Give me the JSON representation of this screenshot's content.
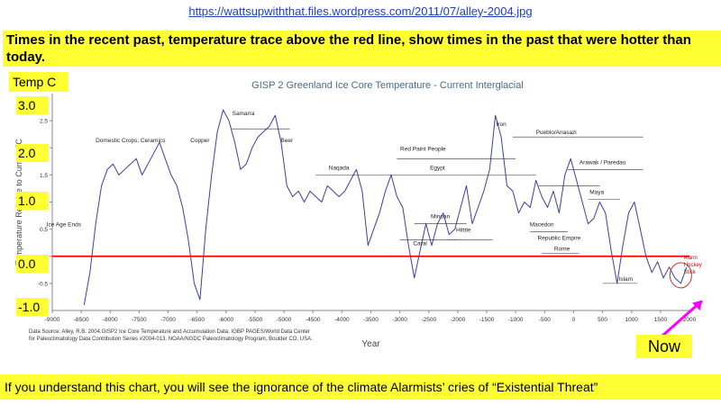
{
  "url": "https://wattsupwiththat.files.wordpress.com/2011/07/alley-2004.jpg",
  "headline": "Times in the recent past, temperature trace above the red line, show times in the past that were hotter than today.",
  "temp_label": "Temp C",
  "now_label": "Now",
  "bottom_text": "If you understand this chart, you will see the ignorance of the climate Alarmists’ cries of “Existential Threat”",
  "source_text": "Data Source: Alley, R.B.  2004.GISP2 Ice Core Temperature and Accumulation Data.  IGBP PAGES/World Data Center for Paleoclimatology Data Contribution Series #2004-013. NOAA/NGDC Paleoclimatology Program, Boulder CO, USA.",
  "colors": {
    "trace": "#3f3f9f",
    "zero_line": "#ff0000",
    "highlight": "#ffff33",
    "arrow": "#ff00ff"
  },
  "chart_data": {
    "type": "line",
    "title": "GISP 2 Greenland Ice Core Temperature - Current Interglacial",
    "xlabel": "Year",
    "ylabel": "Temperature Relative to Current °C",
    "xlim": [
      -9000,
      2000
    ],
    "ylim": [
      -1.0,
      3.0
    ],
    "x_ticks": [
      -9000,
      -8500,
      -8000,
      -7500,
      -7000,
      -6500,
      -6000,
      -5500,
      -5000,
      -4500,
      -4000,
      -3500,
      -3000,
      -2500,
      -2000,
      -1500,
      -1000,
      -500,
      0,
      500,
      1000,
      1500,
      2000
    ],
    "y_ticks": [
      -0.5,
      0,
      0.5,
      1,
      1.5,
      2,
      2.5
    ],
    "y_overlay_labels": [
      "3.0",
      "2.0",
      "1.0",
      "0.0",
      "-1.0"
    ],
    "grid": false,
    "reference_line": {
      "y": 0,
      "color": "red"
    },
    "series": [
      {
        "x": [
          -8450,
          -8350,
          -8250,
          -8150,
          -8050,
          -7950,
          -7850,
          -7750,
          -7650,
          -7550,
          -7450,
          -7350,
          -7250,
          -7150,
          -7050,
          -6950,
          -6850,
          -6750,
          -6650,
          -6550,
          -6450,
          -6350,
          -6250,
          -6150,
          -6050,
          -5950,
          -5850,
          -5750,
          -5650,
          -5550,
          -5450,
          -5350,
          -5250,
          -5150,
          -5050,
          -4950,
          -4850,
          -4750,
          -4650,
          -4550,
          -4450,
          -4350,
          -4250,
          -4150,
          -4050,
          -3950,
          -3850,
          -3750,
          -3650,
          -3550,
          -3450,
          -3350,
          -3250,
          -3150,
          -3050,
          -2950,
          -2850,
          -2750,
          -2650,
          -2550,
          -2450,
          -2350,
          -2250,
          -2150,
          -2050,
          -1950,
          -1850,
          -1750,
          -1650,
          -1550,
          -1450,
          -1350,
          -1250,
          -1150,
          -1050,
          -950,
          -850,
          -750,
          -650,
          -550,
          -450,
          -350,
          -250,
          -150,
          -50,
          50,
          150,
          250,
          350,
          450,
          550,
          650,
          750,
          850,
          950,
          1050,
          1150,
          1250,
          1350,
          1450,
          1550,
          1650,
          1750,
          1850,
          1950
        ],
        "y": [
          -0.9,
          -0.3,
          0.6,
          1.3,
          1.6,
          1.7,
          1.5,
          1.6,
          1.7,
          1.8,
          1.5,
          1.7,
          1.9,
          2.1,
          1.8,
          1.5,
          1.3,
          0.9,
          0.3,
          -0.5,
          -0.8,
          0.5,
          1.5,
          2.3,
          2.7,
          2.5,
          2.1,
          1.6,
          1.7,
          2.0,
          2.2,
          2.3,
          2.4,
          2.6,
          2.1,
          1.3,
          1.1,
          1.2,
          1.0,
          1.2,
          1.1,
          1.0,
          1.3,
          1.2,
          1.1,
          1.2,
          1.4,
          1.6,
          1.2,
          0.2,
          0.5,
          0.8,
          1.2,
          1.5,
          1.1,
          0.9,
          0.2,
          -0.4,
          0.1,
          0.6,
          0.2,
          0.6,
          0.8,
          0.4,
          0.5,
          0.9,
          1.3,
          0.6,
          0.9,
          1.2,
          1.6,
          2.6,
          2.2,
          1.3,
          1.2,
          0.8,
          1.0,
          0.9,
          1.4,
          1.1,
          0.9,
          1.2,
          0.8,
          1.5,
          1.8,
          1.4,
          1.0,
          0.6,
          0.7,
          1.0,
          0.8,
          0.1,
          -0.5,
          0.2,
          0.8,
          1.0,
          0.5,
          0.0,
          -0.3,
          -0.1,
          -0.4,
          -0.2,
          -0.4,
          -0.5,
          -0.2
        ]
      }
    ],
    "annotations": [
      {
        "text": "Ice Age Ends",
        "x": -8800,
        "y": 0.55
      },
      {
        "text": "Domestic Crops, Ceramics",
        "x": -7650,
        "y": 2.1
      },
      {
        "text": "Copper",
        "x": -6450,
        "y": 2.1
      },
      {
        "text": "Samarra",
        "x": -5700,
        "y": 2.6
      },
      {
        "text": "Beer",
        "x": -4950,
        "y": 2.1
      },
      {
        "text": "Naqada",
        "x": -4050,
        "y": 1.6
      },
      {
        "text": "Red Paint People",
        "x": -2600,
        "y": 1.95
      },
      {
        "text": "Iron",
        "x": -1250,
        "y": 2.4
      },
      {
        "text": "Pueblo/Anasazi",
        "x": -300,
        "y": 2.25
      },
      {
        "text": "Egypt",
        "x": -2350,
        "y": 1.6
      },
      {
        "text": "Arawak / Paredao",
        "x": 500,
        "y": 1.7
      },
      {
        "text": "Maya",
        "x": 400,
        "y": 1.15
      },
      {
        "text": "Minoan",
        "x": -2300,
        "y": 0.7
      },
      {
        "text": "Hittite",
        "x": -1900,
        "y": 0.45
      },
      {
        "text": "Macedon",
        "x": -550,
        "y": 0.55
      },
      {
        "text": "Republic  Empire",
        "x": -250,
        "y": 0.3
      },
      {
        "text": "Caral",
        "x": -2650,
        "y": 0.2
      },
      {
        "text": "Rome",
        "x": -200,
        "y": 0.1
      },
      {
        "text": "Islam",
        "x": 900,
        "y": -0.45
      },
      {
        "text": "Mann Hockey Stick",
        "x": 1950,
        "y": -0.05
      }
    ]
  }
}
